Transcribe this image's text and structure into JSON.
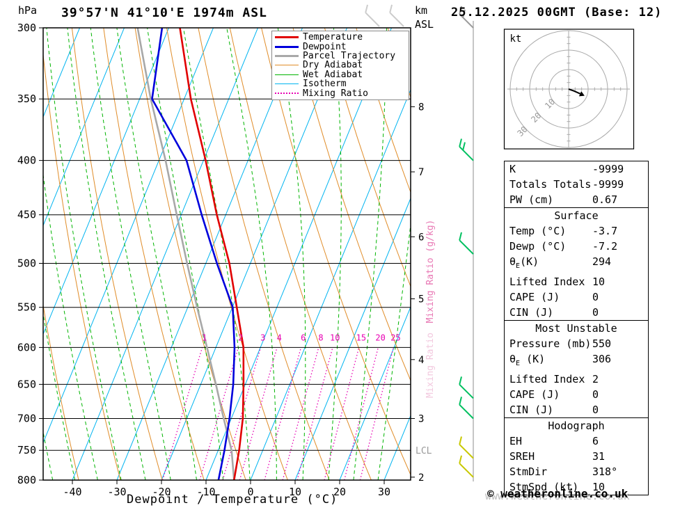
{
  "header": {
    "pressure_unit": "hPa",
    "title": "39°57'N 41°10'E 1974m ASL",
    "altitude_unit_top": "km",
    "altitude_unit_bottom": "ASL",
    "datetime": "25.12.2025 00GMT (Base: 12)"
  },
  "footer": {
    "xlabel": "Dewpoint / Temperature (°C)",
    "copyright": "© weatheronline.co.uk",
    "watermark": "www.weatheronline.co.uk"
  },
  "legend": {
    "items": [
      {
        "label": "Temperature",
        "color": "#e10000",
        "style": "solid",
        "width": 3
      },
      {
        "label": "Dewpoint",
        "color": "#0000dc",
        "style": "solid",
        "width": 3
      },
      {
        "label": "Parcel Trajectory",
        "color": "#a8a8a8",
        "style": "solid",
        "width": 3
      },
      {
        "label": "Dry Adiabat",
        "color": "#e08c28",
        "style": "solid",
        "width": 1
      },
      {
        "label": "Wet Adiabat",
        "color": "#00b400",
        "style": "solid",
        "width": 1
      },
      {
        "label": "Isotherm",
        "color": "#00b4f0",
        "style": "solid",
        "width": 1
      },
      {
        "label": "Mixing Ratio",
        "color": "#e800b4",
        "style": "dotted",
        "width": 2
      }
    ]
  },
  "chart_data": {
    "type": "line",
    "kind": "skew-T log-p sounding",
    "x_axis": {
      "label": "Dewpoint / Temperature (°C)",
      "ticks": [
        -40,
        -30,
        -20,
        -10,
        0,
        10,
        20,
        30
      ]
    },
    "y_axis_left": {
      "unit": "hPa",
      "scale": "log",
      "ticks": [
        300,
        350,
        400,
        450,
        500,
        550,
        600,
        650,
        700,
        750,
        800
      ]
    },
    "y_axis_right": {
      "unit": "km ASL",
      "km_pressure_pairs": [
        [
          8,
          356
        ],
        [
          7,
          410
        ],
        [
          6,
          472
        ],
        [
          5,
          540
        ],
        [
          4,
          616
        ],
        [
          3,
          700
        ],
        [
          2,
          795
        ]
      ]
    },
    "series": [
      {
        "name": "Temperature",
        "color": "#e10000",
        "points_p_T": [
          [
            800,
            -3.7
          ],
          [
            750,
            -5.3
          ],
          [
            700,
            -7.4
          ],
          [
            650,
            -10.4
          ],
          [
            600,
            -13.8
          ],
          [
            550,
            -19.0
          ],
          [
            500,
            -24.7
          ],
          [
            450,
            -32.0
          ],
          [
            400,
            -39.5
          ],
          [
            350,
            -48.5
          ],
          [
            300,
            -57.5
          ]
        ]
      },
      {
        "name": "Dewpoint",
        "color": "#0000dc",
        "points_p_T": [
          [
            800,
            -7.2
          ],
          [
            750,
            -8.6
          ],
          [
            700,
            -10.4
          ],
          [
            650,
            -12.7
          ],
          [
            600,
            -15.8
          ],
          [
            550,
            -19.9
          ],
          [
            500,
            -27.5
          ],
          [
            450,
            -35.4
          ],
          [
            400,
            -43.8
          ],
          [
            350,
            -57.2
          ],
          [
            300,
            -61.5
          ]
        ]
      },
      {
        "name": "Parcel Trajectory",
        "color": "#a8a8a8",
        "points_p_T": [
          [
            800,
            -3.7
          ],
          [
            750,
            -7.0
          ],
          [
            700,
            -11.7
          ],
          [
            650,
            -16.6
          ],
          [
            600,
            -22.0
          ],
          [
            550,
            -27.9
          ],
          [
            500,
            -34.2
          ],
          [
            450,
            -41.0
          ],
          [
            400,
            -48.5
          ],
          [
            350,
            -57.5
          ],
          [
            300,
            -67.0
          ]
        ]
      }
    ],
    "background": {
      "isotherms": {
        "color": "#00b4f0",
        "step_C": 10
      },
      "dry_adiabats": {
        "color": "#e08c28",
        "theta_K_min": 240,
        "theta_K_max": 380,
        "step_K": 10
      },
      "wet_adiabats": {
        "color": "#00b400",
        "thetaw_C_min": -40,
        "thetaw_C_max": 35,
        "step_C": 5
      },
      "mixing_ratio": {
        "color": "#e800b4",
        "values_g_kg": [
          1,
          2,
          3,
          4,
          6,
          8,
          10,
          15,
          20,
          25
        ],
        "axis_label": "Mixing Ratio (g/kg)",
        "axis_label_color": "#e878b4",
        "axis_label_faint": "Mixing Ratio",
        "axis_label_faint_color": "#f2c8de"
      }
    },
    "annotations": {
      "lcl_label": "LCL",
      "lcl_pressure_hPa": 751
    },
    "wind_barbs": {
      "unit": "kt",
      "barbs": [
        {
          "pressure": 300,
          "color": "#9b9b9b",
          "ticks": 2
        },
        {
          "pressure": 400,
          "color": "#00c060",
          "ticks": 2
        },
        {
          "pressure": 490,
          "color": "#00c060",
          "ticks": 1
        },
        {
          "pressure": 670,
          "color": "#00c060",
          "ticks": 1
        },
        {
          "pressure": 700,
          "color": "#00c060",
          "ticks": 1
        },
        {
          "pressure": 763,
          "color": "#c8c800",
          "ticks": 1
        },
        {
          "pressure": 795,
          "color": "#c8c800",
          "ticks": 1
        }
      ],
      "watermark_barbs": [
        {
          "x": 545
        },
        {
          "x": 580
        }
      ]
    },
    "hodograph": {
      "unit": "kt",
      "rings_kt": [
        10,
        20,
        30
      ],
      "trace_uv_kt": [
        [
          0,
          0
        ],
        [
          2.8,
          -1.0
        ],
        [
          5.9,
          -2.4
        ]
      ]
    }
  },
  "panel": {
    "sections": [
      {
        "header": "",
        "rows": [
          [
            "K",
            "-9999"
          ],
          [
            "Totals Totals",
            "-9999"
          ],
          [
            "PW (cm)",
            "0.67"
          ]
        ]
      },
      {
        "header": "Surface",
        "rows": [
          [
            "Temp (°C)",
            "-3.7"
          ],
          [
            "Dewp (°C)",
            "-7.2"
          ],
          [
            "θ_E(K)",
            "294"
          ],
          [
            "Lifted Index",
            "10"
          ],
          [
            "CAPE (J)",
            "0"
          ],
          [
            "CIN (J)",
            "0"
          ]
        ]
      },
      {
        "header": "Most Unstable",
        "rows": [
          [
            "Pressure (mb)",
            "550"
          ],
          [
            "θ_E (K)",
            "306"
          ],
          [
            "Lifted Index",
            "2"
          ],
          [
            "CAPE (J)",
            "0"
          ],
          [
            "CIN (J)",
            "0"
          ]
        ]
      },
      {
        "header": "Hodograph",
        "rows": [
          [
            "EH",
            "6"
          ],
          [
            "SREH",
            "31"
          ],
          [
            "StmDir",
            "318°"
          ],
          [
            "StmSpd (kt)",
            "10"
          ]
        ]
      }
    ]
  }
}
